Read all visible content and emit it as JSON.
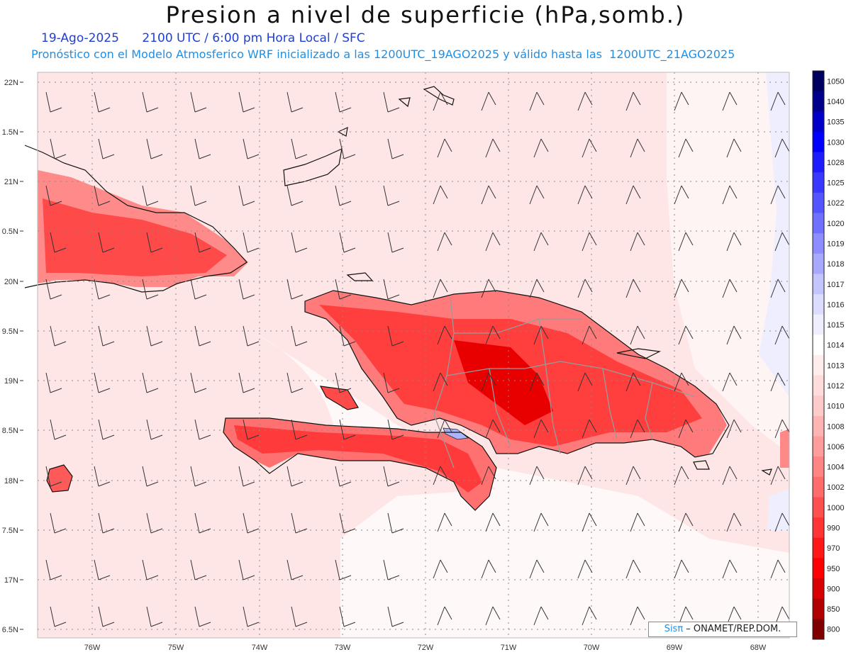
{
  "title": "Presion a nivel de superficie (hPa,somb.)",
  "date": "19-Ago-2025",
  "time_line": "2100 UTC / 6:00 pm Hora Local / SFC",
  "forecast_line": "Pronóstico con el Modelo Atmosferico WRF inicializado a las 1200UTC_19AGO2025 y válido hasta las  1200UTC_21AGO2025",
  "credit_sis": "Sisπ",
  "credit_text": " – ONAMET/REP.DOM.",
  "lat_labels": [
    "22N",
    "1.5N",
    "21N",
    "0.5N",
    "20N",
    "9.5N",
    "19N",
    "8.5N",
    "18N",
    "7.5N",
    "17N",
    "6.5N"
  ],
  "lon_labels": [
    "76W",
    "75W",
    "74W",
    "73W",
    "72W",
    "71W",
    "70W",
    "69W",
    "68W"
  ],
  "colorbar": {
    "levels": [
      "1050",
      "1040",
      "1035",
      "1030",
      "1028",
      "1025",
      "1022",
      "1020",
      "1019",
      "1018",
      "1017",
      "1016",
      "1015",
      "1014",
      "1013",
      "1012",
      "1010",
      "1008",
      "1006",
      "1004",
      "1002",
      "1000",
      "990",
      "970",
      "950",
      "900",
      "850",
      "800"
    ],
    "colors": [
      "#000060",
      "#00008c",
      "#0000c8",
      "#0000ff",
      "#1c1cff",
      "#3838ff",
      "#5555ff",
      "#7070ff",
      "#8d8dff",
      "#a8a8ff",
      "#c4c4ff",
      "#dcdcff",
      "#eeeeff",
      "#ffffff",
      "#ffecec",
      "#ffdcdc",
      "#ffcaca",
      "#ffb4b4",
      "#ff9c9c",
      "#ff8484",
      "#ff6c6c",
      "#ff5050",
      "#ff3434",
      "#ff1818",
      "#ff0000",
      "#d80000",
      "#b00000",
      "#800000"
    ]
  }
}
